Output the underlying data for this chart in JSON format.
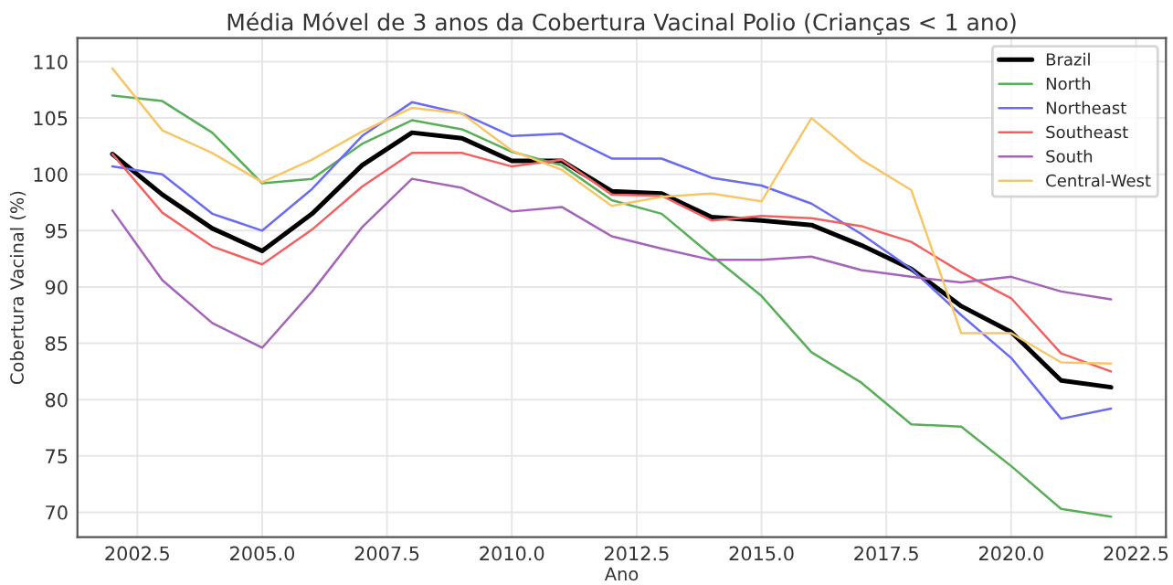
{
  "chart_data": {
    "type": "line",
    "title": "Média Móvel de 3 anos da Cobertura Vacinal Polio (Crianças < 1 ano)",
    "xlabel": "Ano",
    "ylabel": "Cobertura Vacinal (%)",
    "x": [
      2002,
      2003,
      2004,
      2005,
      2006,
      2007,
      2008,
      2009,
      2010,
      2011,
      2012,
      2013,
      2014,
      2015,
      2016,
      2017,
      2018,
      2019,
      2020,
      2021,
      2022
    ],
    "xlim": [
      2001.3,
      2023.1
    ],
    "xticks": [
      {
        "value": 2002.5,
        "label": "2002.5"
      },
      {
        "value": 2005,
        "label": "2005.0"
      },
      {
        "value": 2007.5,
        "label": "2007.5"
      },
      {
        "value": 2010,
        "label": "2010.0"
      },
      {
        "value": 2012.5,
        "label": "2012.5"
      },
      {
        "value": 2015,
        "label": "2015.0"
      },
      {
        "value": 2017.5,
        "label": "2017.5"
      },
      {
        "value": 2020,
        "label": "2020.0"
      },
      {
        "value": 2022.5,
        "label": "2022.5"
      }
    ],
    "ylim": [
      67.8,
      112.1
    ],
    "yticks": [
      70,
      75,
      80,
      85,
      90,
      95,
      100,
      105,
      110
    ],
    "grid": true,
    "legend": "top right",
    "series": [
      {
        "name": "Brazil",
        "color": "#000000",
        "values": [
          101.8,
          98.2,
          95.2,
          93.2,
          96.5,
          100.8,
          103.7,
          103.2,
          101.2,
          101.2,
          98.5,
          98.3,
          96.2,
          95.9,
          95.5,
          93.7,
          91.6,
          88.3,
          86.0,
          81.7,
          81.1
        ]
      },
      {
        "name": "North",
        "color": "#5aae5a",
        "values": [
          107.0,
          106.5,
          103.7,
          99.2,
          99.6,
          102.7,
          104.8,
          104.0,
          102.0,
          100.8,
          97.7,
          96.5,
          92.8,
          89.2,
          84.2,
          81.5,
          77.8,
          77.6,
          74.1,
          70.3,
          69.6
        ]
      },
      {
        "name": "Northeast",
        "color": "#6b6bf0",
        "values": [
          100.7,
          100.0,
          96.5,
          95.0,
          98.7,
          103.4,
          106.4,
          105.4,
          103.4,
          103.6,
          101.4,
          101.4,
          99.7,
          99.0,
          97.4,
          94.7,
          91.6,
          87.5,
          83.7,
          78.3,
          79.2
        ]
      },
      {
        "name": "Southeast",
        "color": "#f06262",
        "values": [
          101.8,
          96.6,
          93.6,
          92.0,
          95.1,
          98.9,
          101.9,
          101.9,
          100.7,
          101.3,
          98.2,
          98.1,
          95.9,
          96.3,
          96.1,
          95.4,
          94.0,
          91.3,
          89.0,
          84.1,
          82.5
        ]
      },
      {
        "name": "South",
        "color": "#a464b8",
        "values": [
          96.8,
          90.6,
          86.8,
          84.6,
          89.6,
          95.3,
          99.6,
          98.8,
          96.7,
          97.1,
          94.5,
          93.4,
          92.4,
          92.4,
          92.7,
          91.5,
          90.9,
          90.4,
          90.9,
          89.6,
          88.9
        ]
      },
      {
        "name": "Central-West",
        "color": "#f6c768",
        "values": [
          109.4,
          103.9,
          101.9,
          99.3,
          101.3,
          103.8,
          105.9,
          105.4,
          102.1,
          100.4,
          97.2,
          98.0,
          98.3,
          97.6,
          105.0,
          101.3,
          98.6,
          85.9,
          85.9,
          83.3,
          83.2
        ]
      }
    ]
  }
}
